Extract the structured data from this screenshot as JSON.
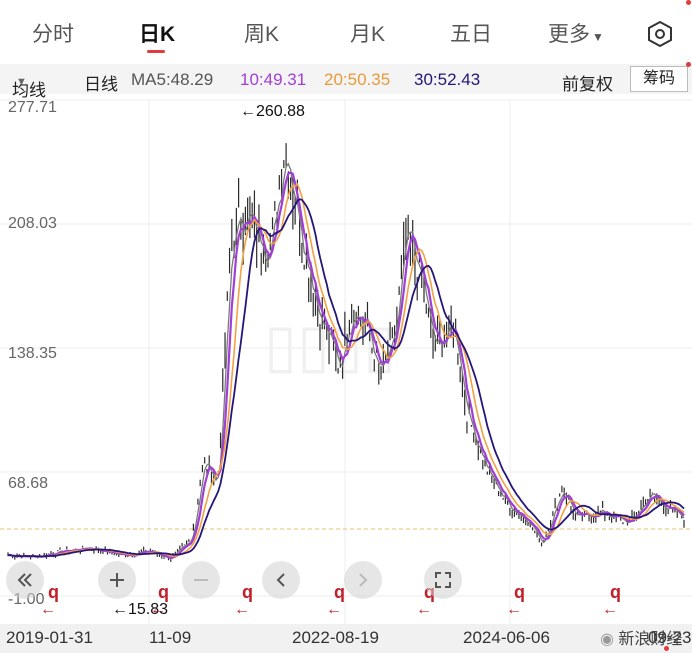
{
  "tabs": [
    "分时",
    "日K",
    "周K",
    "月K",
    "五日",
    "更多"
  ],
  "ma_bar": {
    "indicator_label": "均线",
    "period_label": "日线",
    "ma5": "MA5:48.29",
    "ma10": "10:49.31",
    "ma20": "20:50.35",
    "ma30": "30:52.43",
    "adjust_label": "前复权",
    "chip_label": "筹码"
  },
  "colors": {
    "ma5": "#7a7a7a",
    "ma10": "#a13ed6",
    "ma20": "#f2a243",
    "ma30": "#25167a",
    "accent": "#e23b3b",
    "candle": "#2a2a2a"
  },
  "y_ticks": [
    "277.71",
    "208.03",
    "138.35",
    "68.68",
    "-1.00"
  ],
  "annotations": {
    "max": "←260.88",
    "min": "←15.83"
  },
  "markers": {
    "q_label": "q",
    "arrow": "←"
  },
  "x_labels": [
    "2019-01-31",
    "11-09",
    "2022-08-19",
    "2024-06-06",
    "09-23"
  ],
  "watermark": "新浪财经",
  "chart_data": {
    "type": "line",
    "ylim": [
      -1.0,
      277.71
    ],
    "y_ticks": [
      277.71,
      208.03,
      138.35,
      68.68,
      -1.0
    ],
    "x_ticks": [
      "2019-01-31",
      "11-09",
      "2022-08-19",
      "2024-06-06",
      "09-23"
    ],
    "series": [
      {
        "name": "MA5",
        "last": 48.29
      },
      {
        "name": "10",
        "last": 49.31
      },
      {
        "name": "20",
        "last": 50.35
      },
      {
        "name": "30",
        "last": 52.43
      }
    ],
    "price_path": [
      [
        0,
        22
      ],
      [
        0.04,
        21
      ],
      [
        0.08,
        24
      ],
      [
        0.12,
        26
      ],
      [
        0.17,
        22
      ],
      [
        0.21,
        24
      ],
      [
        0.24,
        20
      ],
      [
        0.27,
        30
      ],
      [
        0.29,
        75
      ],
      [
        0.31,
        62
      ],
      [
        0.33,
        198
      ],
      [
        0.35,
        215
      ],
      [
        0.37,
        200
      ],
      [
        0.39,
        196
      ],
      [
        0.41,
        255
      ],
      [
        0.43,
        210
      ],
      [
        0.46,
        158
      ],
      [
        0.49,
        128
      ],
      [
        0.51,
        163
      ],
      [
        0.53,
        150
      ],
      [
        0.55,
        123
      ],
      [
        0.57,
        140
      ],
      [
        0.59,
        202
      ],
      [
        0.61,
        180
      ],
      [
        0.63,
        138
      ],
      [
        0.66,
        150
      ],
      [
        0.68,
        100
      ],
      [
        0.71,
        68
      ],
      [
        0.74,
        50
      ],
      [
        0.77,
        41
      ],
      [
        0.79,
        28
      ],
      [
        0.82,
        60
      ],
      [
        0.84,
        43
      ],
      [
        0.88,
        46
      ],
      [
        0.92,
        40
      ],
      [
        0.95,
        56
      ],
      [
        1.0,
        42
      ]
    ],
    "max_marker": 260.88,
    "min_marker": 15.83
  }
}
